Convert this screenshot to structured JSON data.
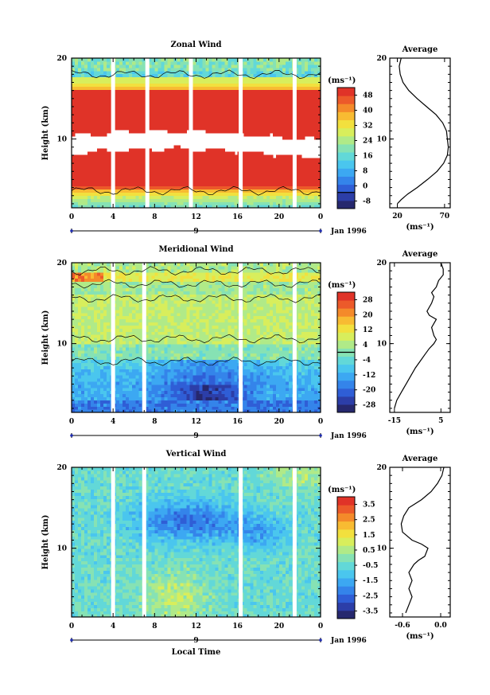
{
  "figure": {
    "time_axis_label": "Local Time",
    "date_label": "Jan 1996",
    "date_marker": "9",
    "unit_label": "(ms⁻¹)",
    "height_label": "Height (km)",
    "average_title": "Average"
  },
  "chart_data": [
    {
      "type": "heatmap",
      "title": "Zonal Wind",
      "xlabel": "",
      "ylabel": "Height (km)",
      "x_ticks": [
        "0",
        "4",
        "8",
        "12",
        "16",
        "20",
        "0"
      ],
      "y_ticks": [
        "10",
        "20"
      ],
      "xlim": [
        0,
        24
      ],
      "ylim": [
        1.5,
        20
      ],
      "colorbar_unit": "(ms⁻¹)",
      "colorbar_ticks": [
        "48",
        "40",
        "32",
        "24",
        "16",
        "8",
        "0",
        "-8"
      ],
      "colorbar_range": [
        -8,
        52
      ],
      "contour_levels": [
        0
      ],
      "data_gaps_hours": [
        4.0,
        7.3,
        11.5,
        16.3,
        21.5
      ],
      "profile_by_height": [
        [
          2,
          18
        ],
        [
          4,
          38
        ],
        [
          6,
          56
        ],
        [
          8,
          64
        ],
        [
          10,
          72
        ],
        [
          12,
          64
        ],
        [
          14,
          56
        ],
        [
          16,
          36
        ],
        [
          18,
          18
        ],
        [
          20,
          22
        ]
      ]
    },
    {
      "type": "heatmap",
      "title": "Meridional Wind",
      "xlabel": "",
      "ylabel": "Height (km)",
      "x_ticks": [
        "0",
        "4",
        "8",
        "12",
        "16",
        "20",
        "0"
      ],
      "y_ticks": [
        "10",
        "20"
      ],
      "xlim": [
        0,
        24
      ],
      "ylim": [
        1.5,
        20
      ],
      "colorbar_unit": "(ms⁻¹)",
      "colorbar_ticks": [
        "28",
        "20",
        "12",
        "4",
        "-4",
        "-12",
        "-20",
        "-28"
      ],
      "colorbar_range": [
        -32,
        32
      ],
      "contour_levels": [
        0
      ],
      "data_gaps_hours": [
        4.0,
        7.0,
        16.3,
        21.5
      ]
    },
    {
      "type": "heatmap",
      "title": "Vertical Wind",
      "xlabel": "Local Time",
      "ylabel": "Height (km)",
      "x_ticks": [
        "0",
        "4",
        "8",
        "12",
        "16",
        "20",
        "0"
      ],
      "y_ticks": [
        "10",
        "20"
      ],
      "xlim": [
        0,
        24
      ],
      "ylim": [
        1.5,
        20
      ],
      "colorbar_unit": "(ms⁻¹)",
      "colorbar_ticks": [
        "3.5",
        "2.5",
        "1.5",
        "0.5",
        "-0.5",
        "-1.5",
        "-2.5",
        "-3.5"
      ],
      "colorbar_range": [
        -4,
        4
      ],
      "data_gaps_hours": [
        4.0,
        7.0,
        16.3,
        21.5
      ]
    },
    {
      "type": "line",
      "title": "Average",
      "xlabel": "(ms⁻¹)",
      "ylabel": "",
      "x_ticks": [
        "20",
        "70"
      ],
      "y_ticks": [
        "10",
        "20"
      ],
      "xlim": [
        12,
        76
      ],
      "ylim": [
        1.5,
        20
      ],
      "x": [
        20,
        24,
        31,
        41,
        52,
        62,
        69,
        73,
        74,
        73,
        72,
        68,
        61,
        51,
        41,
        32,
        26,
        23,
        22,
        24
      ],
      "y": [
        2.0,
        2.5,
        3.2,
        4.0,
        5.0,
        6.0,
        7.0,
        8.0,
        9.0,
        10.0,
        11.0,
        12.0,
        13.0,
        14.0,
        15.0,
        16.0,
        17.0,
        18.0,
        19.0,
        20.0
      ]
    },
    {
      "type": "line",
      "title": "Average",
      "xlabel": "(ms⁻¹)",
      "ylabel": "",
      "x_ticks": [
        "-15",
        "5"
      ],
      "y_ticks": [
        "10",
        "20"
      ],
      "xlim": [
        -17,
        9
      ],
      "ylim": [
        1.5,
        20
      ],
      "x": [
        -15,
        -14,
        -12,
        -10,
        -8,
        -6,
        -4,
        -2,
        0,
        2,
        3,
        2,
        1,
        3,
        0,
        -1,
        1,
        2,
        1,
        3,
        4,
        6,
        6,
        5
      ],
      "y": [
        2.0,
        3.0,
        4.0,
        5.0,
        6.0,
        7.0,
        7.8,
        8.6,
        9.4,
        10.0,
        10.5,
        11.0,
        12.0,
        13.0,
        13.5,
        14.0,
        15.0,
        15.8,
        16.3,
        17.0,
        17.8,
        18.5,
        19.2,
        20.0
      ]
    },
    {
      "type": "line",
      "title": "Average",
      "xlabel": "(ms⁻¹)",
      "ylabel": "",
      "x_ticks": [
        "-0.6",
        "0.0"
      ],
      "y_ticks": [
        "10",
        "20"
      ],
      "xlim": [
        -0.8,
        0.15
      ],
      "ylim": [
        1.5,
        20
      ],
      "x": [
        -0.55,
        -0.5,
        -0.45,
        -0.5,
        -0.45,
        -0.5,
        -0.42,
        -0.35,
        -0.25,
        -0.2,
        -0.3,
        -0.45,
        -0.6,
        -0.62,
        -0.58,
        -0.5,
        -0.3,
        -0.15,
        -0.05,
        0.02,
        0.05
      ],
      "y": [
        2.0,
        3.0,
        4.0,
        5.0,
        6.0,
        7.0,
        8.0,
        8.5,
        9.0,
        10.0,
        10.5,
        11.0,
        12.0,
        13.0,
        14.0,
        15.0,
        16.0,
        17.0,
        18.0,
        19.0,
        20.0
      ]
    }
  ]
}
